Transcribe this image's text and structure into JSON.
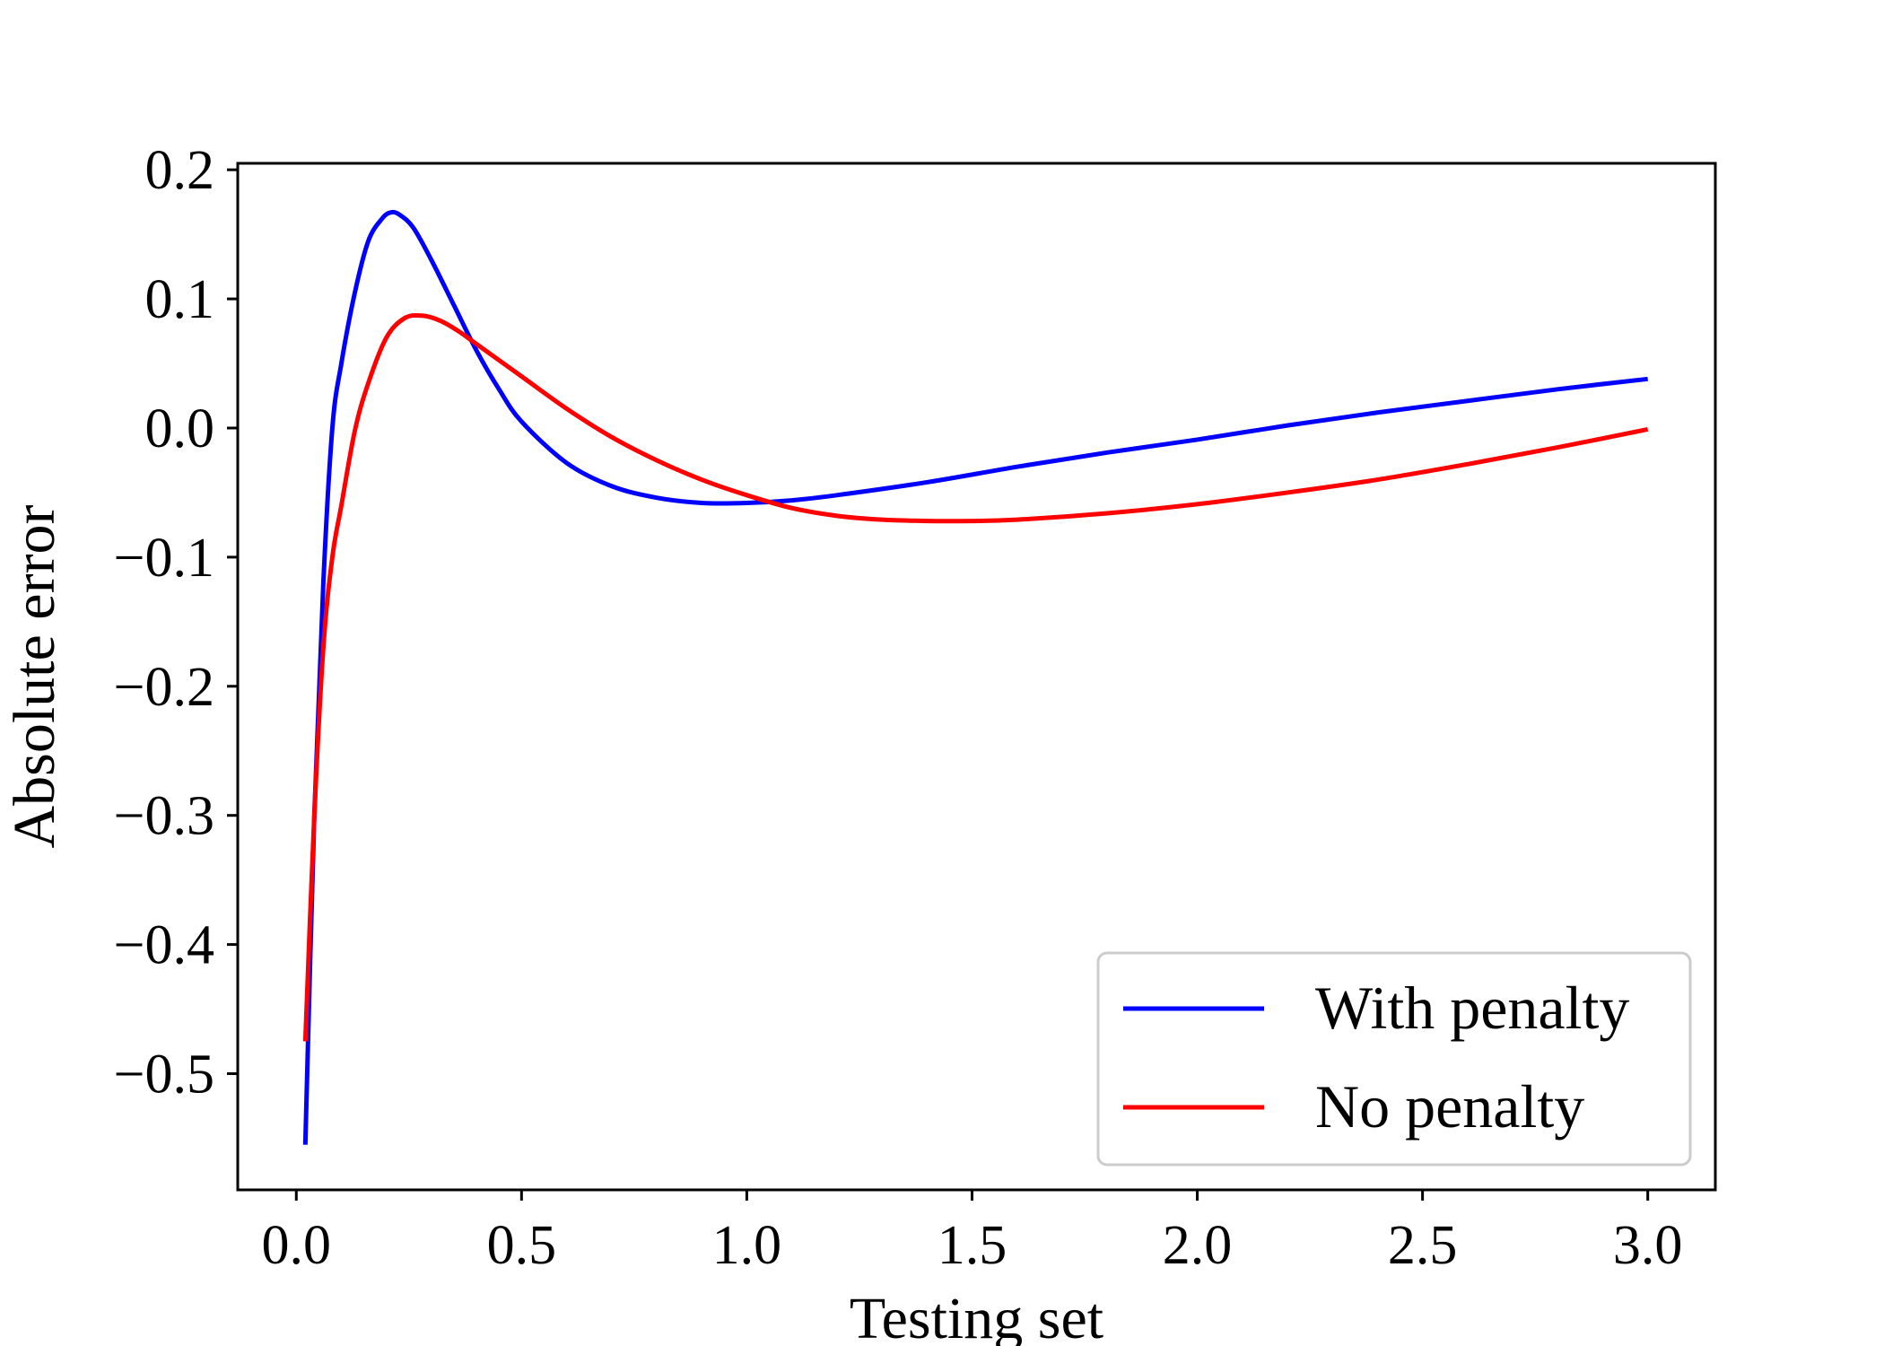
{
  "chart_data": {
    "type": "line",
    "title": "",
    "xlabel": "Testing set",
    "ylabel": "Absolute error",
    "xlim": [
      -0.13,
      3.15
    ],
    "ylim": [
      -0.59,
      0.205
    ],
    "xticks": [
      "0.0",
      "0.5",
      "1.0",
      "1.5",
      "2.0",
      "2.5",
      "3.0"
    ],
    "xtick_values": [
      0.0,
      0.5,
      1.0,
      1.5,
      2.0,
      2.5,
      3.0
    ],
    "yticks": [
      "0.2",
      "0.1",
      "0.0",
      "−0.1",
      "−0.2",
      "−0.3",
      "−0.4",
      "−0.5"
    ],
    "ytick_values": [
      0.2,
      0.1,
      0.0,
      -0.1,
      -0.2,
      -0.3,
      -0.4,
      -0.5
    ],
    "grid": false,
    "legend_position": "lower-right",
    "series": [
      {
        "name": "With penalty",
        "color": "#0000ff",
        "x": [
          0.02,
          0.04,
          0.06,
          0.08,
          0.1,
          0.13,
          0.16,
          0.19,
          0.21,
          0.23,
          0.26,
          0.3,
          0.35,
          0.4,
          0.45,
          0.5,
          0.6,
          0.7,
          0.8,
          0.9,
          1.0,
          1.1,
          1.2,
          1.4,
          1.6,
          1.8,
          2.0,
          2.2,
          2.4,
          2.6,
          2.8,
          3.0
        ],
        "y": [
          -0.555,
          -0.3,
          -0.12,
          0.0,
          0.05,
          0.105,
          0.145,
          0.162,
          0.167,
          0.165,
          0.155,
          0.13,
          0.095,
          0.06,
          0.03,
          0.005,
          -0.027,
          -0.045,
          -0.054,
          -0.058,
          -0.058,
          -0.056,
          -0.052,
          -0.042,
          -0.03,
          -0.019,
          -0.009,
          0.002,
          0.012,
          0.021,
          0.03,
          0.038
        ]
      },
      {
        "name": "No penalty",
        "color": "#ff0000",
        "x": [
          0.02,
          0.04,
          0.06,
          0.08,
          0.1,
          0.13,
          0.16,
          0.2,
          0.24,
          0.28,
          0.32,
          0.36,
          0.4,
          0.5,
          0.6,
          0.7,
          0.8,
          0.9,
          1.0,
          1.1,
          1.2,
          1.3,
          1.4,
          1.5,
          1.6,
          1.8,
          2.0,
          2.2,
          2.4,
          2.6,
          2.8,
          3.0
        ],
        "y": [
          -0.475,
          -0.3,
          -0.17,
          -0.1,
          -0.06,
          -0.002,
          0.035,
          0.07,
          0.085,
          0.087,
          0.083,
          0.075,
          0.065,
          0.04,
          0.015,
          -0.007,
          -0.025,
          -0.04,
          -0.052,
          -0.062,
          -0.068,
          -0.071,
          -0.072,
          -0.072,
          -0.071,
          -0.066,
          -0.059,
          -0.05,
          -0.04,
          -0.028,
          -0.015,
          -0.001
        ]
      }
    ]
  }
}
